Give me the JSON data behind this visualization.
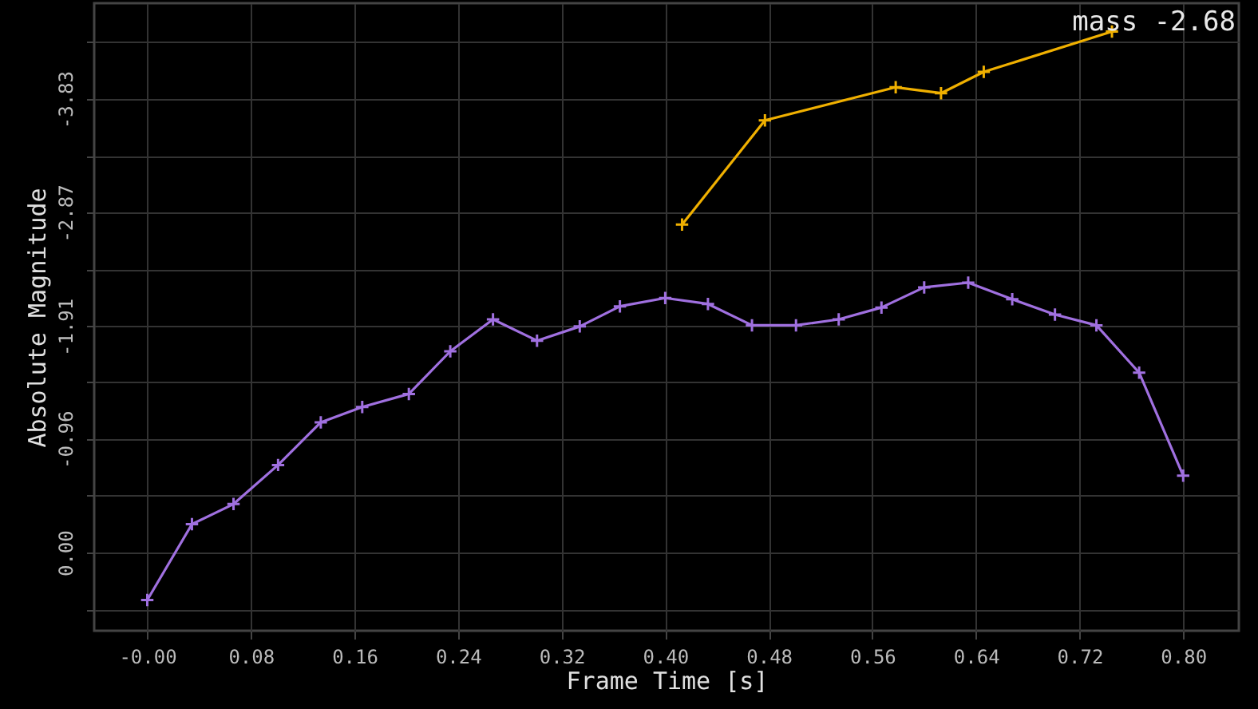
{
  "chart_data": {
    "type": "line",
    "xlabel": "Frame Time [s]",
    "ylabel": "Absolute Magnitude",
    "annotations": [
      "mass -2.68"
    ],
    "xlim": [
      -0.041,
      0.843
    ],
    "ylim": [
      0.66,
      -4.64
    ],
    "xticks": [
      {
        "value": 0,
        "label": "-0.00"
      },
      {
        "value": 0.08,
        "label": "0.08"
      },
      {
        "value": 0.16,
        "label": "0.16"
      },
      {
        "value": 0.24,
        "label": "0.24"
      },
      {
        "value": 0.32,
        "label": "0.32"
      },
      {
        "value": 0.4,
        "label": "0.40"
      },
      {
        "value": 0.48,
        "label": "0.48"
      },
      {
        "value": 0.56,
        "label": "0.56"
      },
      {
        "value": 0.64,
        "label": "0.64"
      },
      {
        "value": 0.72,
        "label": "0.72"
      },
      {
        "value": 0.8,
        "label": "0.80"
      }
    ],
    "yticks": [
      {
        "value": 0.48,
        "label": null
      },
      {
        "value": 0,
        "label": "0.00"
      },
      {
        "value": -0.48,
        "label": null
      },
      -0.96,
      {
        "value": -1.44,
        "label": null
      },
      -1.91,
      {
        "value": -2.39,
        "label": null
      },
      -2.87,
      {
        "value": -3.35,
        "label": null
      },
      -3.83,
      {
        "value": -4.31,
        "label": null
      }
    ],
    "grid": true,
    "marker": "cross",
    "line_style": "solid",
    "series": [
      {
        "color": "#a070e0",
        "x": [
          0,
          0.0345,
          0.0666,
          0.101,
          0.134,
          0.166,
          0.202,
          0.234,
          0.267,
          0.301,
          0.334,
          0.365,
          0.4,
          0.433,
          0.467,
          0.501,
          0.534,
          0.567,
          0.6,
          0.634,
          0.668,
          0.701,
          0.733,
          0.766,
          0.8
        ],
        "values": [
          0.4,
          -0.24,
          -0.41,
          -0.74,
          -1.1,
          -1.23,
          -1.34,
          -1.7,
          -1.97,
          -1.79,
          -1.91,
          -2.08,
          -2.15,
          -2.1,
          -1.92,
          -1.92,
          -1.97,
          -2.07,
          -2.24,
          -2.28,
          -2.14,
          -2.01,
          -1.92,
          -1.52,
          -0.65
        ]
      },
      {
        "color": "#f0b000",
        "x": [
          0.413,
          0.477,
          0.578,
          0.613,
          0.646,
          0.745
        ],
        "values": [
          -2.77,
          -3.65,
          -3.93,
          -3.88,
          -4.06,
          -4.4
        ]
      }
    ]
  }
}
